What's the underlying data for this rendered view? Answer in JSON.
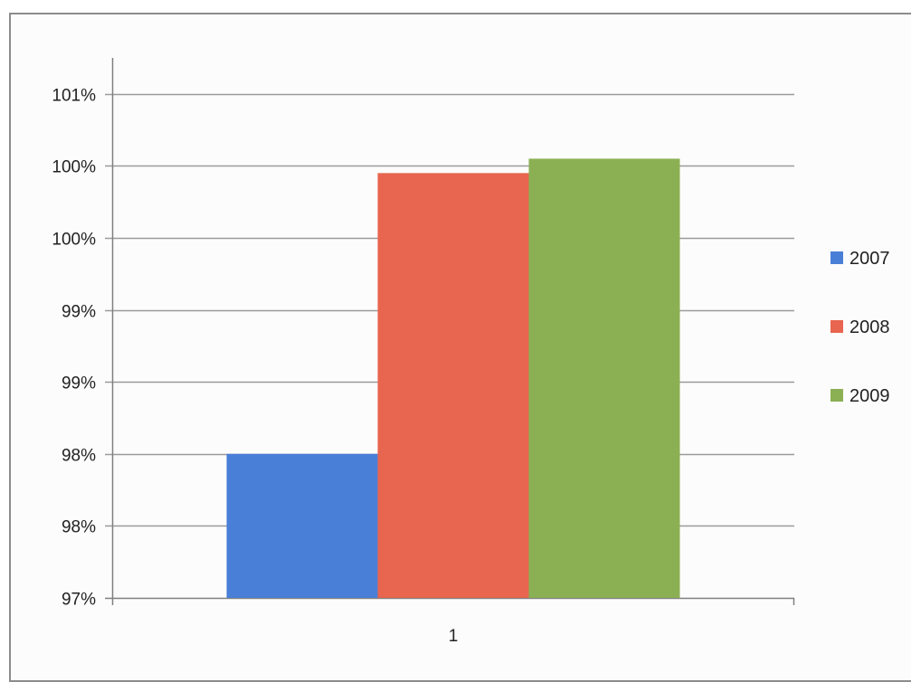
{
  "chart_data": {
    "type": "bar",
    "title": "",
    "xlabel": "",
    "ylabel": "",
    "categories": [
      "1"
    ],
    "series": [
      {
        "name": "2007",
        "values": [
          0.98
        ],
        "color": "#4a7fd8"
      },
      {
        "name": "2008",
        "values": [
          0.9995
        ],
        "color": "#e8654f"
      },
      {
        "name": "2009",
        "values": [
          1.0005
        ],
        "color": "#8bb054"
      }
    ],
    "ylim": [
      0.97,
      1.0075
    ],
    "yticks": [
      {
        "value": 0.97,
        "label": "97%"
      },
      {
        "value": 0.975,
        "label": "98%"
      },
      {
        "value": 0.98,
        "label": "98%"
      },
      {
        "value": 0.985,
        "label": "99%"
      },
      {
        "value": 0.99,
        "label": "99%"
      },
      {
        "value": 0.995,
        "label": "100%"
      },
      {
        "value": 1.0,
        "label": "100%"
      },
      {
        "value": 1.005,
        "label": "101%"
      }
    ],
    "grid": true,
    "legend_position": "right",
    "gridline_color": "#9a9a9a",
    "axis_color": "#808080"
  }
}
